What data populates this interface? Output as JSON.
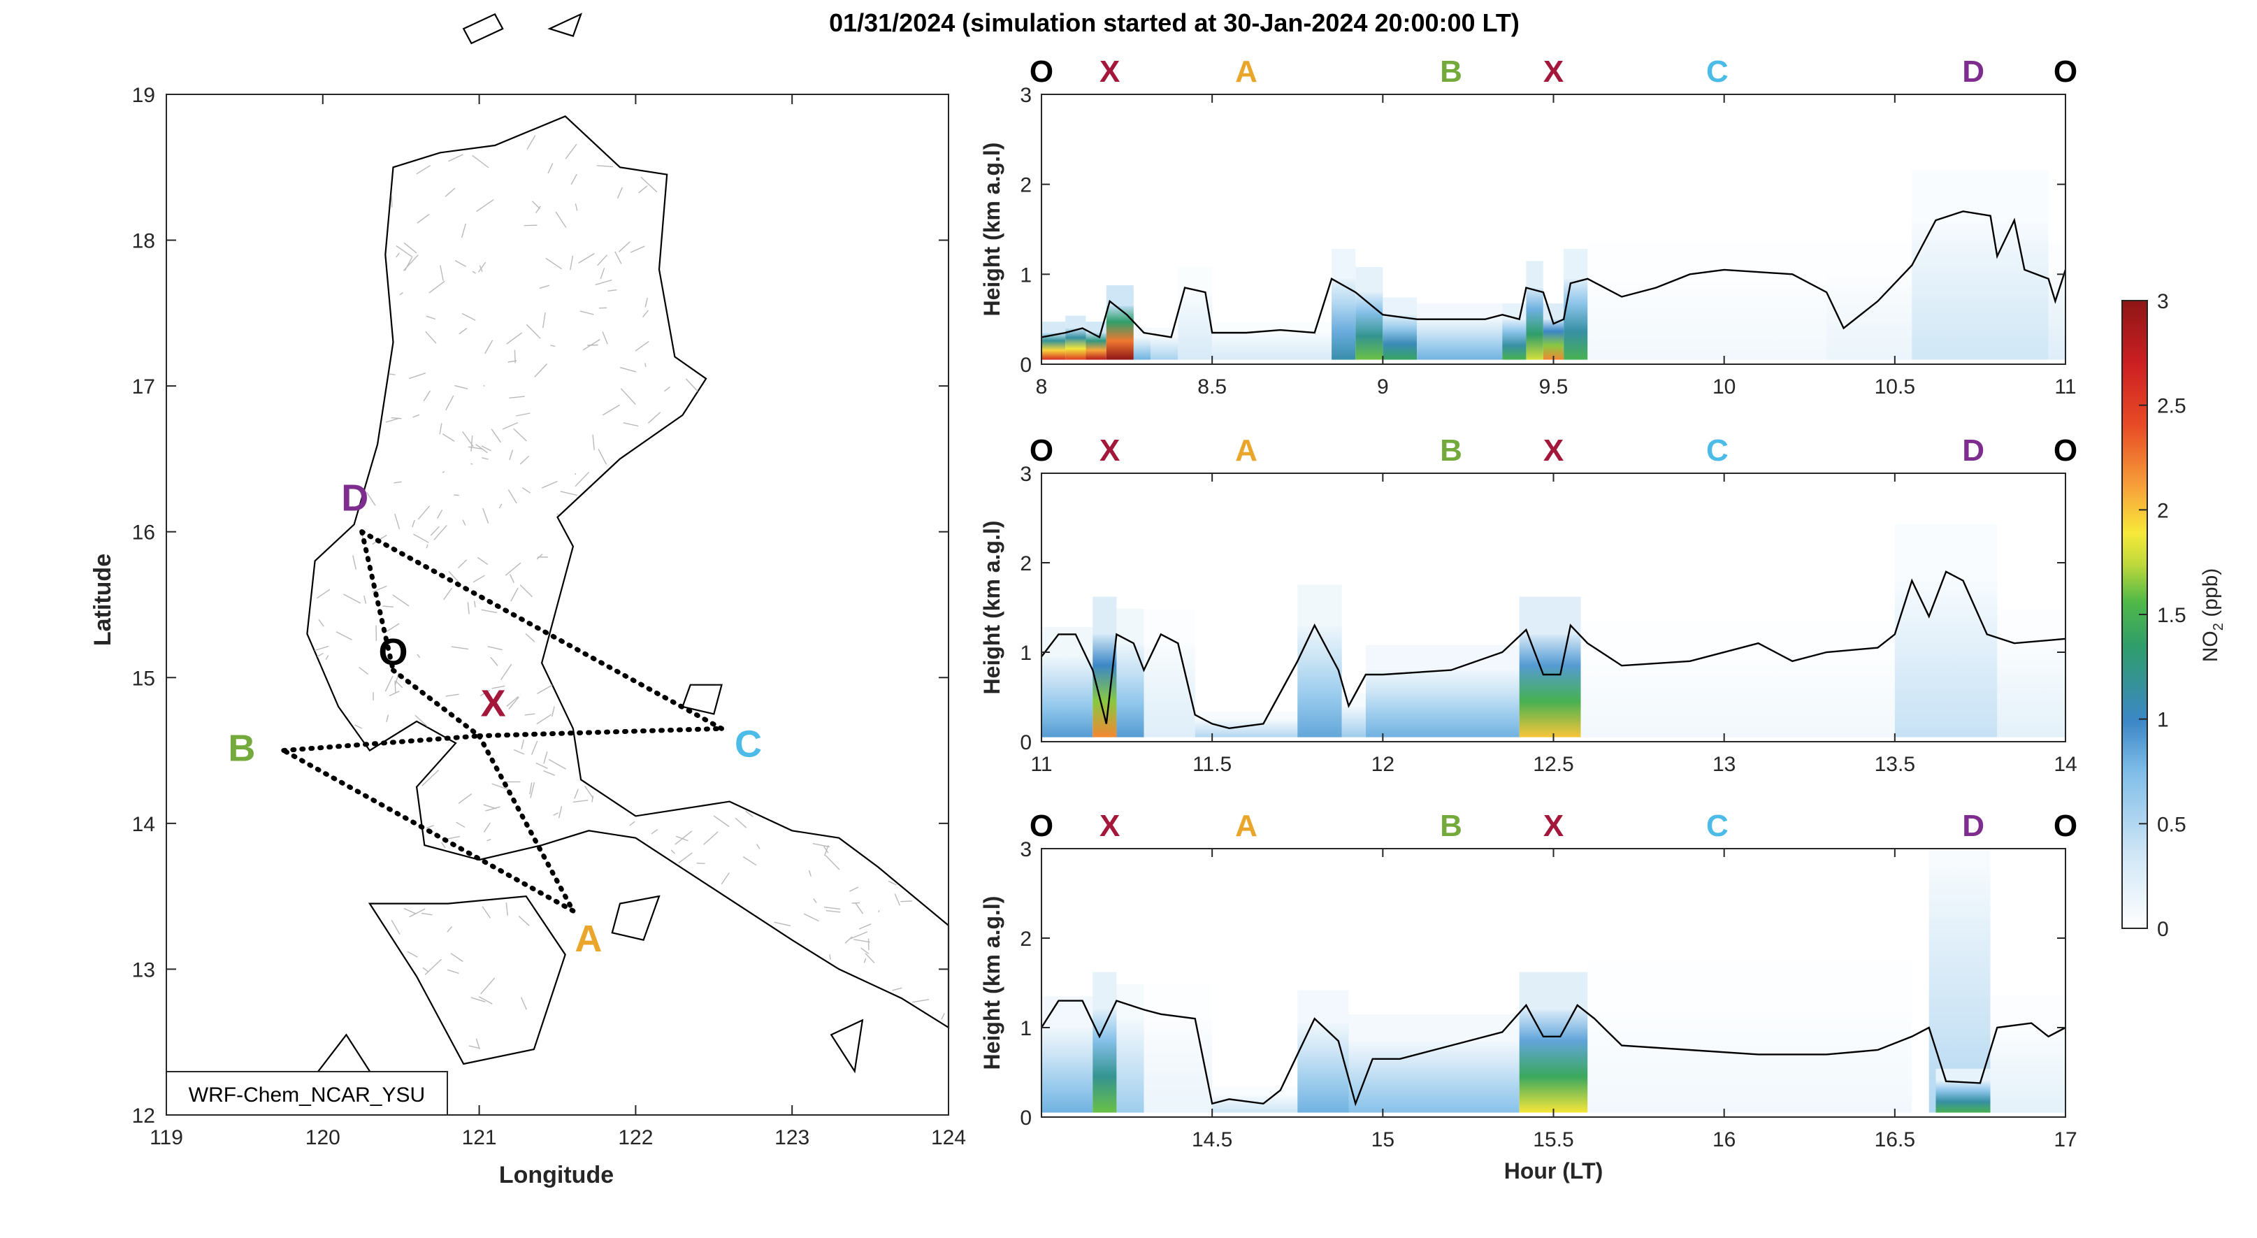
{
  "title": "01/31/2024 (simulation started at 30-Jan-2024 20:00:00 LT)",
  "colors": {
    "O": "#000000",
    "X": "#a3173a",
    "A": "#eaa62a",
    "B": "#74a93b",
    "C": "#4dbbe8",
    "D": "#7e2d8e",
    "track": "#000000",
    "boundary": "#b9b9b9"
  },
  "map": {
    "xlabel": "Longitude",
    "ylabel": "Latitude",
    "xlim": [
      119,
      124
    ],
    "ylim": [
      12,
      19
    ],
    "xticks": [
      "119",
      "120",
      "121",
      "122",
      "123",
      "124"
    ],
    "yticks": [
      "12",
      "13",
      "14",
      "15",
      "16",
      "17",
      "18",
      "19"
    ],
    "model_label": "WRF-Chem_NCAR_YSU",
    "points": [
      {
        "name": "O",
        "lon": 120.45,
        "lat": 15.05
      },
      {
        "name": "X",
        "lon": 121.0,
        "lat": 14.6
      },
      {
        "name": "A",
        "lon": 121.6,
        "lat": 13.4
      },
      {
        "name": "B",
        "lon": 119.75,
        "lat": 14.5
      },
      {
        "name": "C",
        "lon": 122.55,
        "lat": 14.65
      },
      {
        "name": "D",
        "lon": 120.25,
        "lat": 16.0
      }
    ]
  },
  "chart_data": [
    {
      "type": "heatmap",
      "xlabel": "",
      "ylabel": "Height (km a.g.l)",
      "xlim": [
        8,
        11
      ],
      "ylim": [
        0,
        3
      ],
      "xticks": [
        "8",
        "8.5",
        "9",
        "9.5",
        "10",
        "10.5",
        "11"
      ],
      "yticks": [
        "0",
        "1",
        "2",
        "3"
      ],
      "waypoints": [
        {
          "name": "O",
          "x": 8.0
        },
        {
          "name": "X",
          "x": 8.2
        },
        {
          "name": "A",
          "x": 8.6
        },
        {
          "name": "B",
          "x": 9.2
        },
        {
          "name": "X",
          "x": 9.5
        },
        {
          "name": "C",
          "x": 9.98
        },
        {
          "name": "D",
          "x": 10.73
        },
        {
          "name": "O",
          "x": 11.0
        }
      ],
      "pbl_height": [
        [
          8.0,
          0.3
        ],
        [
          8.07,
          0.35
        ],
        [
          8.12,
          0.4
        ],
        [
          8.17,
          0.3
        ],
        [
          8.2,
          0.7
        ],
        [
          8.25,
          0.55
        ],
        [
          8.3,
          0.35
        ],
        [
          8.38,
          0.3
        ],
        [
          8.42,
          0.85
        ],
        [
          8.48,
          0.8
        ],
        [
          8.5,
          0.35
        ],
        [
          8.6,
          0.35
        ],
        [
          8.7,
          0.38
        ],
        [
          8.8,
          0.35
        ],
        [
          8.85,
          0.95
        ],
        [
          8.92,
          0.8
        ],
        [
          9.0,
          0.55
        ],
        [
          9.1,
          0.5
        ],
        [
          9.3,
          0.5
        ],
        [
          9.35,
          0.55
        ],
        [
          9.4,
          0.5
        ],
        [
          9.42,
          0.85
        ],
        [
          9.47,
          0.8
        ],
        [
          9.5,
          0.45
        ],
        [
          9.53,
          0.5
        ],
        [
          9.55,
          0.9
        ],
        [
          9.6,
          0.95
        ],
        [
          9.7,
          0.75
        ],
        [
          9.8,
          0.85
        ],
        [
          9.9,
          1.0
        ],
        [
          10.0,
          1.05
        ],
        [
          10.2,
          1.0
        ],
        [
          10.3,
          0.8
        ],
        [
          10.35,
          0.4
        ],
        [
          10.45,
          0.7
        ],
        [
          10.55,
          1.1
        ],
        [
          10.62,
          1.6
        ],
        [
          10.7,
          1.7
        ],
        [
          10.78,
          1.65
        ],
        [
          10.8,
          1.2
        ],
        [
          10.85,
          1.6
        ],
        [
          10.88,
          1.05
        ],
        [
          10.95,
          0.95
        ],
        [
          10.97,
          0.7
        ],
        [
          11.0,
          1.05
        ]
      ],
      "no2_cells": [
        {
          "x0": 8.0,
          "x1": 8.07,
          "z0": 0.05,
          "z1": 0.35,
          "v": 2.6
        },
        {
          "x0": 8.07,
          "x1": 8.13,
          "z0": 0.05,
          "z1": 0.4,
          "v": 2.5
        },
        {
          "x0": 8.13,
          "x1": 8.19,
          "z0": 0.05,
          "z1": 0.35,
          "v": 2.8
        },
        {
          "x0": 8.19,
          "x1": 8.27,
          "z0": 0.05,
          "z1": 0.65,
          "v": 3.0
        },
        {
          "x0": 8.27,
          "x1": 8.32,
          "z0": 0.05,
          "z1": 0.3,
          "v": 0.8
        },
        {
          "x0": 8.32,
          "x1": 8.4,
          "z0": 0.05,
          "z1": 0.3,
          "v": 0.55
        },
        {
          "x0": 8.4,
          "x1": 8.5,
          "z0": 0.05,
          "z1": 0.8,
          "v": 0.3
        },
        {
          "x0": 8.5,
          "x1": 8.85,
          "z0": 0.05,
          "z1": 0.35,
          "v": 0.3
        },
        {
          "x0": 8.85,
          "x1": 8.92,
          "z0": 0.05,
          "z1": 0.95,
          "v": 1.1
        },
        {
          "x0": 8.92,
          "x1": 9.0,
          "z0": 0.05,
          "z1": 0.8,
          "v": 1.6
        },
        {
          "x0": 9.0,
          "x1": 9.1,
          "z0": 0.05,
          "z1": 0.55,
          "v": 1.4
        },
        {
          "x0": 9.1,
          "x1": 9.35,
          "z0": 0.05,
          "z1": 0.5,
          "v": 0.8
        },
        {
          "x0": 9.35,
          "x1": 9.42,
          "z0": 0.05,
          "z1": 0.5,
          "v": 1.5
        },
        {
          "x0": 9.42,
          "x1": 9.47,
          "z0": 0.05,
          "z1": 0.85,
          "v": 1.8
        },
        {
          "x0": 9.47,
          "x1": 9.53,
          "z0": 0.05,
          "z1": 0.5,
          "v": 2.2
        },
        {
          "x0": 9.53,
          "x1": 9.6,
          "z0": 0.05,
          "z1": 0.95,
          "v": 1.5
        },
        {
          "x0": 9.6,
          "x1": 10.3,
          "z0": 0.05,
          "z1": 1.0,
          "v": 0.1
        },
        {
          "x0": 10.3,
          "x1": 10.55,
          "z0": 0.05,
          "z1": 1.0,
          "v": 0.15
        },
        {
          "x0": 10.55,
          "x1": 10.95,
          "z0": 0.05,
          "z1": 1.6,
          "v": 0.35
        },
        {
          "x0": 10.95,
          "x1": 11.0,
          "z0": 0.05,
          "z1": 1.0,
          "v": 0.25
        }
      ]
    },
    {
      "type": "heatmap",
      "xlabel": "",
      "ylabel": "Height (km a.g.l)",
      "xlim": [
        11,
        14
      ],
      "ylim": [
        0,
        3
      ],
      "xticks": [
        "11",
        "11.5",
        "12",
        "12.5",
        "13",
        "13.5",
        "14"
      ],
      "yticks": [
        "0",
        "1",
        "2",
        "3"
      ],
      "waypoints": [
        {
          "name": "O",
          "x": 11.0
        },
        {
          "name": "X",
          "x": 11.2
        },
        {
          "name": "A",
          "x": 11.6
        },
        {
          "name": "B",
          "x": 12.2
        },
        {
          "name": "X",
          "x": 12.5
        },
        {
          "name": "C",
          "x": 12.98
        },
        {
          "name": "D",
          "x": 13.73
        },
        {
          "name": "O",
          "x": 14.0
        }
      ],
      "pbl_height": [
        [
          11.0,
          0.95
        ],
        [
          11.05,
          1.2
        ],
        [
          11.1,
          1.2
        ],
        [
          11.15,
          0.8
        ],
        [
          11.19,
          0.2
        ],
        [
          11.22,
          1.2
        ],
        [
          11.27,
          1.1
        ],
        [
          11.3,
          0.8
        ],
        [
          11.35,
          1.2
        ],
        [
          11.4,
          1.1
        ],
        [
          11.45,
          0.3
        ],
        [
          11.5,
          0.2
        ],
        [
          11.55,
          0.15
        ],
        [
          11.65,
          0.2
        ],
        [
          11.75,
          0.9
        ],
        [
          11.8,
          1.3
        ],
        [
          11.87,
          0.8
        ],
        [
          11.9,
          0.4
        ],
        [
          11.95,
          0.75
        ],
        [
          12.0,
          0.75
        ],
        [
          12.2,
          0.8
        ],
        [
          12.35,
          1.0
        ],
        [
          12.42,
          1.25
        ],
        [
          12.47,
          0.75
        ],
        [
          12.52,
          0.75
        ],
        [
          12.55,
          1.3
        ],
        [
          12.6,
          1.1
        ],
        [
          12.7,
          0.85
        ],
        [
          12.9,
          0.9
        ],
        [
          13.1,
          1.1
        ],
        [
          13.2,
          0.9
        ],
        [
          13.3,
          1.0
        ],
        [
          13.45,
          1.05
        ],
        [
          13.5,
          1.2
        ],
        [
          13.55,
          1.8
        ],
        [
          13.6,
          1.4
        ],
        [
          13.65,
          1.9
        ],
        [
          13.7,
          1.8
        ],
        [
          13.77,
          1.2
        ],
        [
          13.85,
          1.1
        ],
        [
          14.0,
          1.15
        ]
      ],
      "no2_cells": [
        {
          "x0": 11.0,
          "x1": 11.15,
          "z0": 0.05,
          "z1": 0.95,
          "v": 0.9
        },
        {
          "x0": 11.15,
          "x1": 11.22,
          "z0": 0.05,
          "z1": 1.2,
          "v": 2.2
        },
        {
          "x0": 11.22,
          "x1": 11.3,
          "z0": 0.05,
          "z1": 1.1,
          "v": 0.9
        },
        {
          "x0": 11.3,
          "x1": 11.45,
          "z0": 0.05,
          "z1": 1.1,
          "v": 0.25
        },
        {
          "x0": 11.45,
          "x1": 11.75,
          "z0": 0.05,
          "z1": 0.25,
          "v": 0.5
        },
        {
          "x0": 11.75,
          "x1": 11.88,
          "z0": 0.05,
          "z1": 1.3,
          "v": 0.85
        },
        {
          "x0": 11.88,
          "x1": 11.95,
          "z0": 0.05,
          "z1": 0.4,
          "v": 0.6
        },
        {
          "x0": 11.95,
          "x1": 12.4,
          "z0": 0.05,
          "z1": 0.8,
          "v": 0.8
        },
        {
          "x0": 12.4,
          "x1": 12.58,
          "z0": 0.05,
          "z1": 1.2,
          "v": 2.0
        },
        {
          "x0": 12.58,
          "x1": 13.5,
          "z0": 0.05,
          "z1": 1.0,
          "v": 0.1
        },
        {
          "x0": 13.5,
          "x1": 13.8,
          "z0": 0.05,
          "z1": 1.8,
          "v": 0.4
        },
        {
          "x0": 13.8,
          "x1": 14.0,
          "z0": 0.05,
          "z1": 1.1,
          "v": 0.2
        }
      ]
    },
    {
      "type": "heatmap",
      "xlabel": "Hour (LT)",
      "ylabel": "Height (km a.g.l)",
      "xlim": [
        14,
        17
      ],
      "ylim": [
        0,
        3
      ],
      "xticks": [
        "14.5",
        "15",
        "15.5",
        "16",
        "16.5",
        "17"
      ],
      "yticks": [
        "0",
        "1",
        "2",
        "3"
      ],
      "waypoints": [
        {
          "name": "O",
          "x": 14.0
        },
        {
          "name": "X",
          "x": 14.2
        },
        {
          "name": "A",
          "x": 14.6
        },
        {
          "name": "B",
          "x": 15.2
        },
        {
          "name": "X",
          "x": 15.5
        },
        {
          "name": "C",
          "x": 15.98
        },
        {
          "name": "D",
          "x": 16.73
        },
        {
          "name": "O",
          "x": 17.0
        }
      ],
      "pbl_height": [
        [
          14.0,
          1.0
        ],
        [
          14.05,
          1.3
        ],
        [
          14.12,
          1.3
        ],
        [
          14.17,
          0.9
        ],
        [
          14.22,
          1.3
        ],
        [
          14.3,
          1.2
        ],
        [
          14.35,
          1.15
        ],
        [
          14.45,
          1.1
        ],
        [
          14.5,
          0.15
        ],
        [
          14.55,
          0.2
        ],
        [
          14.65,
          0.15
        ],
        [
          14.7,
          0.3
        ],
        [
          14.8,
          1.1
        ],
        [
          14.87,
          0.85
        ],
        [
          14.92,
          0.15
        ],
        [
          14.97,
          0.65
        ],
        [
          15.05,
          0.65
        ],
        [
          15.2,
          0.8
        ],
        [
          15.35,
          0.95
        ],
        [
          15.42,
          1.25
        ],
        [
          15.47,
          0.9
        ],
        [
          15.52,
          0.9
        ],
        [
          15.57,
          1.25
        ],
        [
          15.62,
          1.1
        ],
        [
          15.7,
          0.8
        ],
        [
          15.9,
          0.75
        ],
        [
          16.1,
          0.7
        ],
        [
          16.3,
          0.7
        ],
        [
          16.45,
          0.75
        ],
        [
          16.55,
          0.9
        ],
        [
          16.6,
          1.0
        ],
        [
          16.65,
          0.4
        ],
        [
          16.75,
          0.38
        ],
        [
          16.8,
          1.0
        ],
        [
          16.9,
          1.05
        ],
        [
          16.95,
          0.9
        ],
        [
          17.0,
          1.0
        ]
      ],
      "no2_cells": [
        {
          "x0": 14.0,
          "x1": 14.15,
          "z0": 0.05,
          "z1": 1.0,
          "v": 0.8
        },
        {
          "x0": 14.15,
          "x1": 14.22,
          "z0": 0.05,
          "z1": 1.2,
          "v": 1.6
        },
        {
          "x0": 14.22,
          "x1": 14.3,
          "z0": 0.05,
          "z1": 1.1,
          "v": 0.6
        },
        {
          "x0": 14.3,
          "x1": 14.5,
          "z0": 0.05,
          "z1": 1.1,
          "v": 0.15
        },
        {
          "x0": 14.5,
          "x1": 14.75,
          "z0": 0.05,
          "z1": 0.25,
          "v": 0.35
        },
        {
          "x0": 14.75,
          "x1": 14.9,
          "z0": 0.05,
          "z1": 1.05,
          "v": 0.8
        },
        {
          "x0": 14.9,
          "x1": 15.4,
          "z0": 0.05,
          "z1": 0.85,
          "v": 0.7
        },
        {
          "x0": 15.4,
          "x1": 15.6,
          "z0": 0.05,
          "z1": 1.2,
          "v": 1.9
        },
        {
          "x0": 15.6,
          "x1": 16.55,
          "z0": 0.05,
          "z1": 1.3,
          "v": 0.1
        },
        {
          "x0": 16.6,
          "x1": 16.78,
          "z0": 0.05,
          "z1": 2.8,
          "v": 0.5
        },
        {
          "x0": 16.62,
          "x1": 16.78,
          "z0": 0.05,
          "z1": 0.4,
          "v": 1.5
        },
        {
          "x0": 16.78,
          "x1": 17.0,
          "z0": 0.05,
          "z1": 1.0,
          "v": 0.2
        }
      ]
    }
  ],
  "colorbar": {
    "label_main": "NO",
    "label_sub": "2",
    "label_unit": " (ppb)",
    "range": [
      0,
      3
    ],
    "ticks": [
      "0",
      "0.5",
      "1",
      "1.5",
      "2",
      "2.5",
      "3"
    ]
  }
}
